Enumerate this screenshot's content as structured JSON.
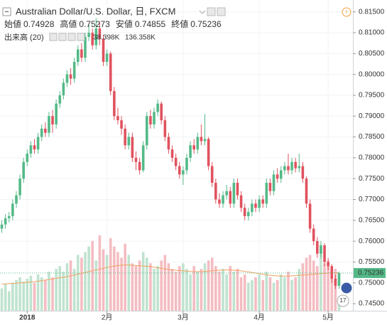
{
  "chart_data": {
    "type": "candlestick",
    "title": "Australian Dollar/U.S. Dollar, 日, FXCM",
    "ohlc_labels": [
      "始値",
      "高値",
      "安値",
      "終値"
    ],
    "volume_title": "出来高 (20)",
    "volume_value_label": "38.398K",
    "volume_ma_value_label": "136.358K",
    "badge": "17",
    "up_color": "#53b987",
    "down_color": "#e0525e",
    "volume_up_color": "#bfe3cf",
    "volume_down_color": "#f4bcc1",
    "volume_ma_color": "#f0a261",
    "grid": true,
    "ylim": [
      0.7433,
      0.817
    ],
    "yticks": [
      {
        "value": 0.745,
        "label": "0.74500"
      },
      {
        "value": 0.75,
        "label": "0.75000"
      },
      {
        "value": 0.755,
        "label": "0.75500"
      },
      {
        "value": 0.76,
        "label": "0.76000"
      },
      {
        "value": 0.765,
        "label": "0.76500"
      },
      {
        "value": 0.77,
        "label": "0.77000"
      },
      {
        "value": 0.775,
        "label": "0.77500"
      },
      {
        "value": 0.78,
        "label": "0.78000"
      },
      {
        "value": 0.785,
        "label": "0.78500"
      },
      {
        "value": 0.79,
        "label": "0.79000"
      },
      {
        "value": 0.795,
        "label": "0.79500"
      },
      {
        "value": 0.8,
        "label": "0.80000"
      },
      {
        "value": 0.805,
        "label": "0.80500"
      },
      {
        "value": 0.81,
        "label": "0.81000"
      },
      {
        "value": 0.815,
        "label": "0.81500"
      }
    ],
    "xlim": [
      -0.5,
      93.5
    ],
    "xticks": [
      {
        "value": 7,
        "label": "2018"
      },
      {
        "value": 29,
        "label": "2月"
      },
      {
        "value": 50,
        "label": "3月"
      },
      {
        "value": 71,
        "label": "4月"
      },
      {
        "value": 90,
        "label": "5月"
      }
    ],
    "vlim": [
      0,
      280
    ],
    "ohlc": [
      [
        0.763,
        0.765,
        0.762,
        0.764
      ],
      [
        0.764,
        0.7665,
        0.763,
        0.7655
      ],
      [
        0.7655,
        0.767,
        0.7645,
        0.766
      ],
      [
        0.766,
        0.77,
        0.765,
        0.769
      ],
      [
        0.769,
        0.772,
        0.768,
        0.771
      ],
      [
        0.771,
        0.776,
        0.77,
        0.775
      ],
      [
        0.775,
        0.78,
        0.774,
        0.779
      ],
      [
        0.779,
        0.782,
        0.778,
        0.781
      ],
      [
        0.781,
        0.784,
        0.78,
        0.783
      ],
      [
        0.783,
        0.7845,
        0.781,
        0.782
      ],
      [
        0.782,
        0.786,
        0.781,
        0.785
      ],
      [
        0.785,
        0.788,
        0.784,
        0.787
      ],
      [
        0.787,
        0.7885,
        0.785,
        0.786
      ],
      [
        0.786,
        0.791,
        0.785,
        0.79
      ],
      [
        0.79,
        0.7915,
        0.786,
        0.788
      ],
      [
        0.788,
        0.794,
        0.787,
        0.793
      ],
      [
        0.793,
        0.796,
        0.792,
        0.795
      ],
      [
        0.795,
        0.799,
        0.794,
        0.798
      ],
      [
        0.798,
        0.801,
        0.797,
        0.8
      ],
      [
        0.8,
        0.8015,
        0.7975,
        0.799
      ],
      [
        0.799,
        0.804,
        0.798,
        0.803
      ],
      [
        0.803,
        0.807,
        0.802,
        0.806
      ],
      [
        0.806,
        0.8075,
        0.803,
        0.804
      ],
      [
        0.804,
        0.81,
        0.803,
        0.809
      ],
      [
        0.809,
        0.812,
        0.808,
        0.81
      ],
      [
        0.81,
        0.811,
        0.806,
        0.807
      ],
      [
        0.807,
        0.8135,
        0.806,
        0.811
      ],
      [
        0.811,
        0.8125,
        0.807,
        0.8085
      ],
      [
        0.8085,
        0.8095,
        0.802,
        0.803
      ],
      [
        0.803,
        0.806,
        0.802,
        0.805
      ],
      [
        0.805,
        0.8055,
        0.795,
        0.796
      ],
      [
        0.796,
        0.797,
        0.789,
        0.79
      ],
      [
        0.79,
        0.792,
        0.788,
        0.789
      ],
      [
        0.789,
        0.79,
        0.7855,
        0.787
      ],
      [
        0.787,
        0.788,
        0.782,
        0.783
      ],
      [
        0.783,
        0.786,
        0.782,
        0.785
      ],
      [
        0.785,
        0.786,
        0.779,
        0.78
      ],
      [
        0.78,
        0.7815,
        0.777,
        0.779
      ],
      [
        0.779,
        0.78,
        0.776,
        0.777
      ],
      [
        0.777,
        0.784,
        0.7765,
        0.783
      ],
      [
        0.783,
        0.791,
        0.782,
        0.79
      ],
      [
        0.79,
        0.7915,
        0.787,
        0.788
      ],
      [
        0.788,
        0.792,
        0.787,
        0.791
      ],
      [
        0.791,
        0.794,
        0.79,
        0.793
      ],
      [
        0.793,
        0.7935,
        0.788,
        0.789
      ],
      [
        0.789,
        0.79,
        0.784,
        0.785
      ],
      [
        0.785,
        0.786,
        0.781,
        0.782
      ],
      [
        0.782,
        0.783,
        0.779,
        0.78
      ],
      [
        0.78,
        0.781,
        0.777,
        0.778
      ],
      [
        0.778,
        0.779,
        0.775,
        0.776
      ],
      [
        0.776,
        0.778,
        0.7735,
        0.777
      ],
      [
        0.777,
        0.781,
        0.776,
        0.78
      ],
      [
        0.78,
        0.784,
        0.779,
        0.783
      ],
      [
        0.783,
        0.7845,
        0.781,
        0.782
      ],
      [
        0.782,
        0.786,
        0.781,
        0.785
      ],
      [
        0.785,
        0.788,
        0.783,
        0.784
      ],
      [
        0.784,
        0.7905,
        0.783,
        0.7845
      ],
      [
        0.7845,
        0.785,
        0.777,
        0.778
      ],
      [
        0.778,
        0.779,
        0.773,
        0.774
      ],
      [
        0.774,
        0.775,
        0.769,
        0.77
      ],
      [
        0.77,
        0.7715,
        0.768,
        0.769
      ],
      [
        0.769,
        0.772,
        0.768,
        0.771
      ],
      [
        0.771,
        0.7735,
        0.77,
        0.772
      ],
      [
        0.772,
        0.773,
        0.768,
        0.769
      ],
      [
        0.769,
        0.775,
        0.768,
        0.774
      ],
      [
        0.774,
        0.775,
        0.77,
        0.771
      ],
      [
        0.771,
        0.772,
        0.767,
        0.768
      ],
      [
        0.768,
        0.769,
        0.765,
        0.766
      ],
      [
        0.766,
        0.768,
        0.765,
        0.767
      ],
      [
        0.767,
        0.77,
        0.766,
        0.769
      ],
      [
        0.769,
        0.77,
        0.767,
        0.768
      ],
      [
        0.768,
        0.771,
        0.767,
        0.77
      ],
      [
        0.77,
        0.771,
        0.768,
        0.769
      ],
      [
        0.769,
        0.775,
        0.768,
        0.774
      ],
      [
        0.774,
        0.775,
        0.771,
        0.772
      ],
      [
        0.772,
        0.777,
        0.771,
        0.776
      ],
      [
        0.776,
        0.7775,
        0.774,
        0.775
      ],
      [
        0.775,
        0.778,
        0.774,
        0.777
      ],
      [
        0.777,
        0.779,
        0.776,
        0.778
      ],
      [
        0.778,
        0.781,
        0.776,
        0.777
      ],
      [
        0.777,
        0.78,
        0.776,
        0.779
      ],
      [
        0.779,
        0.78,
        0.7765,
        0.7775
      ],
      [
        0.7775,
        0.781,
        0.7765,
        0.778
      ],
      [
        0.778,
        0.779,
        0.774,
        0.775
      ],
      [
        0.775,
        0.7755,
        0.768,
        0.769
      ],
      [
        0.769,
        0.77,
        0.762,
        0.763
      ],
      [
        0.763,
        0.764,
        0.759,
        0.76
      ],
      [
        0.76,
        0.761,
        0.756,
        0.757
      ],
      [
        0.757,
        0.76,
        0.756,
        0.759
      ],
      [
        0.759,
        0.7595,
        0.754,
        0.755
      ],
      [
        0.755,
        0.756,
        0.753,
        0.754
      ],
      [
        0.754,
        0.7545,
        0.75,
        0.751
      ],
      [
        0.751,
        0.752,
        0.7485,
        0.7493
      ],
      [
        0.74928,
        0.75273,
        0.74855,
        0.75236
      ]
    ],
    "volume": [
      80,
      95,
      70,
      100,
      110,
      120,
      105,
      115,
      125,
      100,
      130,
      120,
      110,
      140,
      120,
      150,
      160,
      140,
      170,
      180,
      150,
      200,
      190,
      210,
      230,
      250,
      180,
      270,
      220,
      200,
      260,
      230,
      210,
      190,
      240,
      200,
      170,
      160,
      180,
      210,
      190,
      170,
      150,
      160,
      180,
      200,
      170,
      150,
      140,
      160,
      170,
      150,
      130,
      160,
      140,
      150,
      170,
      180,
      190,
      160,
      140,
      150,
      130,
      160,
      140,
      150,
      120,
      130,
      100,
      110,
      120,
      130,
      110,
      140,
      120,
      100,
      110,
      130,
      120,
      140,
      110,
      120,
      150,
      170,
      190,
      200,
      180,
      160,
      210,
      170,
      180,
      160,
      150,
      38.398
    ],
    "volume_ma": [
      95,
      96,
      97,
      98,
      99,
      100,
      101,
      102,
      103,
      104,
      106,
      108,
      110,
      112,
      114,
      116,
      118,
      120,
      122,
      125,
      128,
      131,
      134,
      137,
      140,
      143,
      146,
      149,
      152,
      155,
      158,
      160,
      162,
      163,
      164,
      164,
      163,
      162,
      161,
      160,
      159,
      158,
      156,
      154,
      152,
      150,
      148,
      146,
      145,
      144,
      143,
      142,
      141,
      140,
      140,
      140,
      141,
      142,
      143,
      144,
      145,
      146,
      146,
      146,
      145,
      144,
      143,
      141,
      139,
      137,
      135,
      133,
      131,
      129,
      127,
      126,
      125,
      124,
      124,
      124,
      125,
      126,
      127,
      128,
      129,
      130,
      131,
      132,
      133,
      134,
      135,
      136,
      136,
      136.358
    ]
  }
}
